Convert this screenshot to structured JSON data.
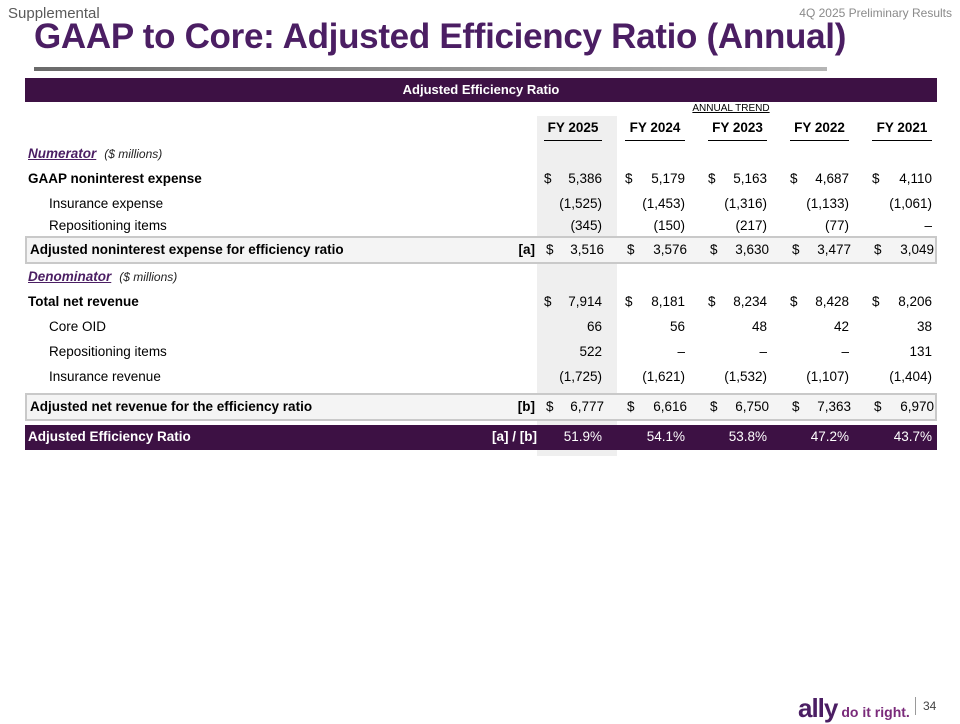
{
  "header": {
    "supplemental": "Supplemental",
    "report": "4Q 2025 Preliminary Results",
    "title": "GAAP to Core: Adjusted Efficiency Ratio (Annual)"
  },
  "table": {
    "title": "Adjusted Efficiency Ratio",
    "trend_label": "ANNUAL TREND",
    "years": [
      "FY 2025",
      "FY 2024",
      "FY 2023",
      "FY 2022",
      "FY 2021"
    ],
    "numerator_label": "Numerator",
    "numerator_units": "($ millions)",
    "gaap_nie": {
      "label": "GAAP noninterest expense",
      "values": [
        [
          "$",
          "5,386"
        ],
        [
          "$",
          "5,179"
        ],
        [
          "$",
          "5,163"
        ],
        [
          "$",
          "4,687"
        ],
        [
          "$",
          "4,110"
        ]
      ]
    },
    "insurance_expense": {
      "label": "Insurance expense",
      "values": [
        "(1,525)",
        "(1,453)",
        "(1,316)",
        "(1,133)",
        "(1,061)"
      ]
    },
    "repositioning_exp": {
      "label": "Repositioning items",
      "values": [
        "(345)",
        "(150)",
        "(217)",
        "(77)",
        "–"
      ]
    },
    "adj_nie": {
      "label": "Adjusted noninterest expense for efficiency ratio",
      "tag": "[a]",
      "values": [
        [
          "$",
          "3,516"
        ],
        [
          "$",
          "3,576"
        ],
        [
          "$",
          "3,630"
        ],
        [
          "$",
          "3,477"
        ],
        [
          "$",
          "3,049"
        ]
      ]
    },
    "denominator_label": "Denominator",
    "denominator_units": "($ millions)",
    "total_rev": {
      "label": "Total net revenue",
      "values": [
        [
          "$",
          "7,914"
        ],
        [
          "$",
          "8,181"
        ],
        [
          "$",
          "8,234"
        ],
        [
          "$",
          "8,428"
        ],
        [
          "$",
          "8,206"
        ]
      ]
    },
    "core_oid": {
      "label": "Core OID",
      "values": [
        "66",
        "56",
        "48",
        "42",
        "38"
      ]
    },
    "repositioning_rev": {
      "label": "Repositioning items",
      "values": [
        "522",
        "–",
        "–",
        "–",
        "131"
      ]
    },
    "insurance_rev": {
      "label": "Insurance revenue",
      "values": [
        "(1,725)",
        "(1,621)",
        "(1,532)",
        "(1,107)",
        "(1,404)"
      ]
    },
    "adj_rev": {
      "label": "Adjusted net revenue for the efficiency ratio",
      "tag": "[b]",
      "values": [
        [
          "$",
          "6,777"
        ],
        [
          "$",
          "6,616"
        ],
        [
          "$",
          "6,750"
        ],
        [
          "$",
          "7,363"
        ],
        [
          "$",
          "6,970"
        ]
      ]
    },
    "ratio": {
      "label": "Adjusted Efficiency Ratio",
      "tag": "[a] / [b]",
      "values": [
        "51.9%",
        "54.1%",
        "53.8%",
        "47.2%",
        "43.7%"
      ]
    }
  },
  "footer": {
    "logo": "ally",
    "tagline": "do it right.",
    "page": "34"
  },
  "colors": {
    "brand": "#4b1e63",
    "header_bg": "#3d1144"
  }
}
